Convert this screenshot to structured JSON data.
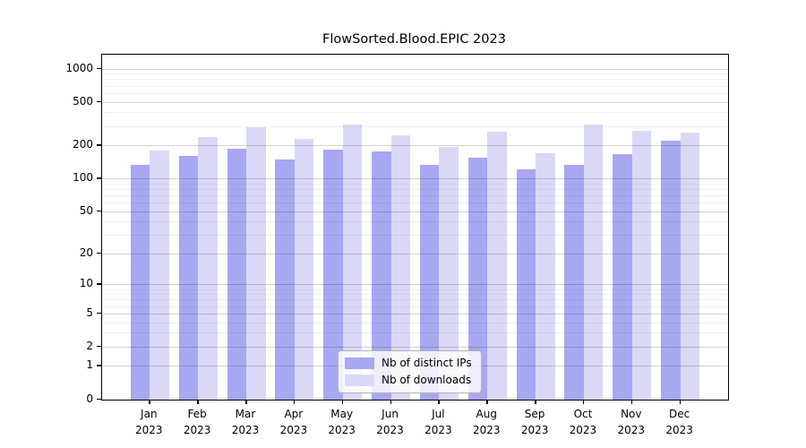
{
  "chart_data": {
    "type": "bar",
    "title": "FlowSorted.Blood.EPIC 2023",
    "categories": [
      "Jan",
      "Feb",
      "Mar",
      "Apr",
      "May",
      "Jun",
      "Jul",
      "Aug",
      "Sep",
      "Oct",
      "Nov",
      "Dec"
    ],
    "category_year": "2023",
    "series": [
      {
        "name": "Nb of distinct IPs",
        "color": "#a8a8f2",
        "values": [
          133,
          162,
          185,
          148,
          182,
          176,
          133,
          155,
          122,
          132,
          168,
          219
        ]
      },
      {
        "name": "Nb of downloads",
        "color": "#d9d9f7",
        "values": [
          180,
          240,
          294,
          230,
          310,
          248,
          195,
          269,
          170,
          310,
          273,
          264
        ]
      }
    ],
    "yscale": "log1p",
    "yticks": [
      0,
      1,
      2,
      5,
      10,
      20,
      50,
      100,
      200,
      500,
      1000
    ],
    "minor_yticks": [
      3,
      4,
      6,
      7,
      8,
      9,
      30,
      40,
      60,
      70,
      80,
      90,
      300,
      400,
      600,
      700,
      800,
      900
    ],
    "ylim": [
      0,
      1340
    ],
    "xlabel": "",
    "ylabel": "",
    "grid": true,
    "legend_position": "bottom-center"
  }
}
